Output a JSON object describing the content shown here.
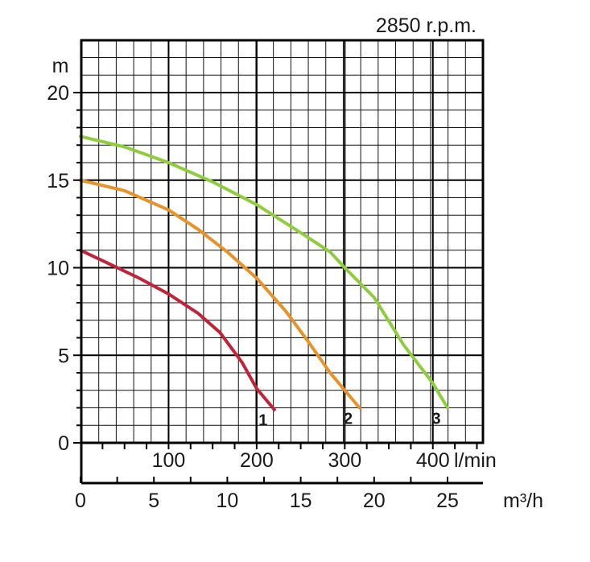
{
  "chart_data": {
    "type": "line",
    "title": "2850 r.p.m.",
    "ylabel": "m",
    "ylim": [
      0,
      20
    ],
    "y_ticks": [
      "0",
      "5",
      "10",
      "15",
      "20"
    ],
    "x_lmin": {
      "unit": "l/min",
      "ticks": [
        "100",
        "200",
        "300",
        "400"
      ]
    },
    "x_m3h": {
      "unit": "m³/h",
      "range": [
        0,
        27
      ],
      "ticks": [
        "0",
        "5",
        "10",
        "15",
        "20",
        "25"
      ]
    },
    "series": [
      {
        "name": "1",
        "color": "#c0243a",
        "points": [
          [
            0,
            11.0
          ],
          [
            2,
            10.2
          ],
          [
            4,
            9.4
          ],
          [
            6,
            8.5
          ],
          [
            8,
            7.4
          ],
          [
            9.5,
            6.3
          ],
          [
            11,
            4.6
          ],
          [
            12,
            3.1
          ],
          [
            13.2,
            1.9
          ]
        ]
      },
      {
        "name": "2",
        "color": "#e8922a",
        "points": [
          [
            0,
            15.0
          ],
          [
            3,
            14.4
          ],
          [
            6,
            13.3
          ],
          [
            8,
            12.2
          ],
          [
            10,
            10.9
          ],
          [
            12,
            9.4
          ],
          [
            14,
            7.5
          ],
          [
            15.5,
            5.8
          ],
          [
            17,
            4.0
          ],
          [
            19,
            2.0
          ]
        ]
      },
      {
        "name": "3",
        "color": "#8fcd3d",
        "points": [
          [
            0,
            17.5
          ],
          [
            3,
            16.9
          ],
          [
            6,
            16.0
          ],
          [
            9,
            14.9
          ],
          [
            12,
            13.6
          ],
          [
            15,
            12.0
          ],
          [
            17,
            10.9
          ],
          [
            18,
            10.0
          ],
          [
            20,
            8.3
          ],
          [
            22,
            5.6
          ],
          [
            24,
            3.4
          ],
          [
            25,
            2.0
          ]
        ]
      }
    ],
    "grid": true
  }
}
